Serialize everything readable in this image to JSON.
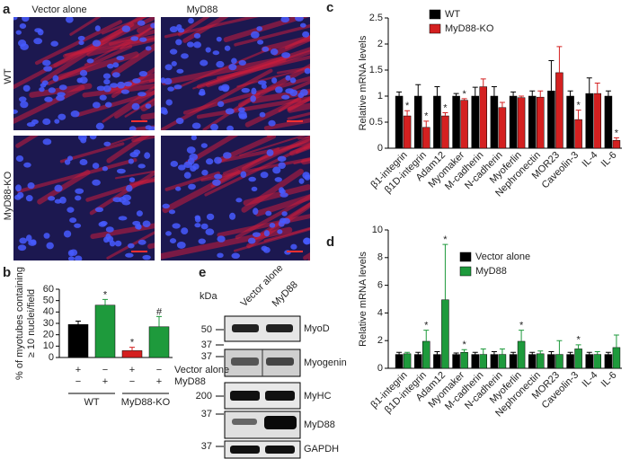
{
  "panels": {
    "a": {
      "label": "a",
      "columns": [
        "Vector alone",
        "MyD88"
      ],
      "rows": [
        "WT",
        "MyD88-KO"
      ]
    },
    "e": {
      "label": "e",
      "unit": "kDa",
      "columns": [
        "Vector alone",
        "MyD88"
      ],
      "rows": [
        {
          "label": "MyoD",
          "markers": [
            50,
            37
          ]
        },
        {
          "label": "Myogenin",
          "markers": [
            37
          ]
        },
        {
          "label": "MyHC",
          "markers": [
            200
          ]
        },
        {
          "label": "MyD88",
          "markers": [
            37
          ]
        },
        {
          "label": "GAPDH",
          "markers": [
            37
          ]
        }
      ]
    }
  },
  "chart_data": [
    {
      "type": "bar",
      "label": "b",
      "y_label": [
        "% of myotubes containing",
        "≥ 10 nuclei/field"
      ],
      "categories": [
        null,
        null,
        null,
        null
      ],
      "series": [
        {
          "values": [
            29,
            46,
            6,
            27
          ],
          "errors": [
            3,
            5,
            3,
            9
          ],
          "colors": [
            "#000000",
            "#1e9a3c",
            "#d42020",
            "#1e9a3c"
          ],
          "significance": [
            null,
            "*",
            "*",
            "#"
          ]
        }
      ],
      "sign_rows": [
        {
          "label": "Vector alone",
          "signs": [
            "+",
            "−",
            "+",
            "−"
          ]
        },
        {
          "label": "MyD88",
          "signs": [
            "−",
            "+",
            "−",
            "+"
          ]
        }
      ],
      "groups": [
        "WT",
        "MyD88-KO"
      ],
      "ylim": [
        0,
        60
      ],
      "yticks": [
        0,
        10,
        20,
        30,
        40,
        50,
        60
      ]
    },
    {
      "type": "bar",
      "label": "c",
      "y_label": [
        "Relative mRNA levels"
      ],
      "categories": [
        "β1-integrin",
        "β1D-integrin",
        "Adam12",
        "Myomaker",
        "M-cadherin",
        "N-cadherin",
        "Myoferlin",
        "Nephronectin",
        "MOR23",
        "Caveolin-3",
        "IL-4",
        "IL-6"
      ],
      "series": [
        {
          "name": "WT",
          "color": "#000000",
          "values": [
            1.0,
            1.0,
            1.0,
            1.0,
            1.0,
            1.0,
            1.0,
            1.0,
            1.1,
            1.0,
            1.05,
            1.0
          ],
          "errors": [
            0.08,
            0.22,
            0.18,
            0.05,
            0.17,
            0.18,
            0.08,
            0.1,
            0.58,
            0.1,
            0.3,
            0.1
          ]
        },
        {
          "name": "MyD88-KO",
          "color": "#d42020",
          "values": [
            0.62,
            0.4,
            0.62,
            0.92,
            1.18,
            0.78,
            0.97,
            0.98,
            1.45,
            0.55,
            1.05,
            0.15
          ],
          "errors": [
            0.1,
            0.12,
            0.06,
            0.03,
            0.15,
            0.1,
            0.03,
            0.12,
            0.5,
            0.18,
            0.2,
            0.05
          ],
          "significance": [
            "*",
            "*",
            "*",
            "*",
            null,
            null,
            null,
            null,
            null,
            "*",
            null,
            "*"
          ]
        }
      ],
      "legend": "top-left",
      "ylim": [
        0,
        2.5
      ],
      "yticks": [
        0,
        0.5,
        1,
        1.5,
        2,
        2.5
      ]
    },
    {
      "type": "bar",
      "label": "d",
      "y_label": [
        "Relative mRNA levels"
      ],
      "categories": [
        "β1-integrin",
        "β1D-integrin",
        "Adam12",
        "Myomaker",
        "M-cadherin",
        "N-cadherin",
        "Myoferlin",
        "Nephronectin",
        "MOR23",
        "Caveolin-3",
        "IL-4",
        "IL-6"
      ],
      "series": [
        {
          "name": "Vector alone",
          "color": "#000000",
          "values": [
            1.0,
            1.0,
            1.0,
            1.0,
            1.0,
            1.0,
            1.0,
            1.0,
            1.0,
            1.0,
            1.0,
            1.0
          ],
          "errors": [
            0.15,
            0.15,
            0.2,
            0.1,
            0.15,
            0.2,
            0.15,
            0.15,
            0.2,
            0.15,
            0.15,
            0.15
          ]
        },
        {
          "name": "MyD88",
          "color": "#1e9a3c",
          "values": [
            1.05,
            1.95,
            4.95,
            1.15,
            1.0,
            1.0,
            1.95,
            1.05,
            1.0,
            1.4,
            1.0,
            1.5
          ],
          "errors": [
            0.1,
            0.8,
            4.0,
            0.2,
            0.4,
            0.4,
            0.8,
            0.2,
            1.0,
            0.3,
            0.2,
            0.9
          ],
          "significance": [
            null,
            "*",
            "*",
            "*",
            null,
            null,
            "*",
            null,
            null,
            "*",
            null,
            null
          ]
        }
      ],
      "legend": "top-left",
      "ylim": [
        0,
        10
      ],
      "yticks": [
        0,
        2,
        4,
        6,
        8,
        10
      ]
    }
  ]
}
